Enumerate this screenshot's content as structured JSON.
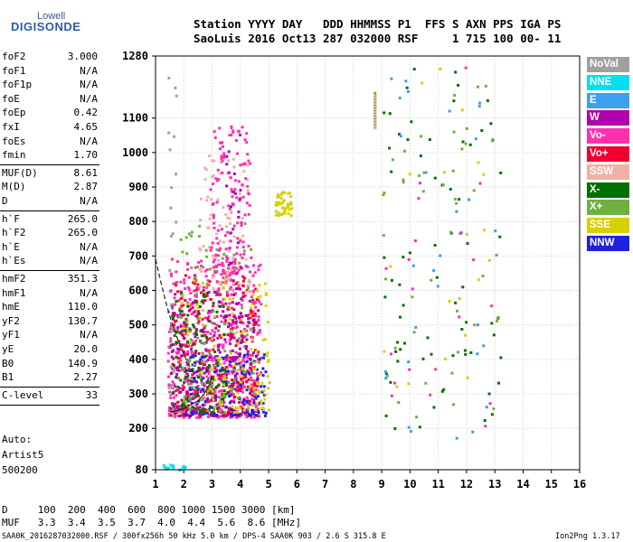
{
  "logo": {
    "top": "Lowell",
    "main": "DIGISONDE"
  },
  "header": {
    "line1": "Station YYYY DAY   DDD HHMMSS P1  FFS S AXN PPS IGA PS",
    "line2": "SaoLuis 2016 Oct13 287 032000 RSF     1 715 100 00- 11"
  },
  "params": [
    {
      "name": "foF2",
      "value": "3.000"
    },
    {
      "name": "foF1",
      "value": "N/A"
    },
    {
      "name": "foF1p",
      "value": "N/A"
    },
    {
      "name": "foE",
      "value": "N/A"
    },
    {
      "name": "foEp",
      "value": "0.42"
    },
    {
      "name": "fxI",
      "value": "4.65"
    },
    {
      "name": "foEs",
      "value": "N/A"
    },
    {
      "name": "fmin",
      "value": "1.70"
    },
    {
      "name": "MUF(D)",
      "value": "8.61"
    },
    {
      "name": "M(D)",
      "value": "2.87"
    },
    {
      "name": "D",
      "value": "N/A"
    },
    {
      "name": "h`F",
      "value": "265.0"
    },
    {
      "name": "h`F2",
      "value": "265.0"
    },
    {
      "name": "h`E",
      "value": "N/A"
    },
    {
      "name": "h`Es",
      "value": "N/A"
    },
    {
      "name": "hmF2",
      "value": "351.3"
    },
    {
      "name": "hmF1",
      "value": "N/A"
    },
    {
      "name": "hmE",
      "value": "110.0"
    },
    {
      "name": "yF2",
      "value": "130.7"
    },
    {
      "name": "yF1",
      "value": "N/A"
    },
    {
      "name": "yE",
      "value": "20.0"
    },
    {
      "name": "B0",
      "value": "140.9"
    },
    {
      "name": "B1",
      "value": "2.27"
    },
    {
      "name": "C-level",
      "value": "33"
    }
  ],
  "notes": {
    "auto": "Auto:",
    "artist": "Artist5",
    "version": "500200"
  },
  "legend": [
    {
      "label": "NoVal",
      "color": "#a0a0a0"
    },
    {
      "label": "NNE",
      "color": "#00e0f0"
    },
    {
      "label": "E",
      "color": "#3ca0f0"
    },
    {
      "label": "W",
      "color": "#b000b0"
    },
    {
      "label": "Vo-",
      "color": "#ff30b0"
    },
    {
      "label": "Vo+",
      "color": "#f00030"
    },
    {
      "label": "SSW",
      "color": "#f0b0a8"
    },
    {
      "label": "X-",
      "color": "#007000"
    },
    {
      "label": "X+",
      "color": "#70b040"
    },
    {
      "label": "SSE",
      "color": "#d8d000"
    },
    {
      "label": "NNW",
      "color": "#2020e0"
    }
  ],
  "footer": {
    "d_row": "D     100  200  400  600  800 1000 1500 3000 [km]",
    "muf_row": "MUF   3.3  3.4  3.5  3.7  4.0  4.4  5.6  8.6 [MHz]",
    "info": "SAA0K_2016287032000.RSF / 300fx256h 50 kHz 5.0 km / DPS-4 SAA0K 903 / 2.6 S 315.8 E",
    "version": "Ion2Png 1.3.17"
  },
  "chart_data": {
    "type": "scatter",
    "title": "",
    "xlabel": "",
    "ylabel": "",
    "xlim": [
      1,
      16
    ],
    "ylim": [
      80,
      1280
    ],
    "xticks": [
      1,
      2,
      3,
      4,
      5,
      6,
      7,
      8,
      9,
      10,
      11,
      12,
      13,
      14,
      15,
      16
    ],
    "yticks": [
      80,
      200,
      300,
      400,
      500,
      600,
      700,
      800,
      900,
      1000,
      1100,
      1280
    ],
    "grid": true,
    "legend_position": "right",
    "profile_curve": {
      "x": [
        1.5,
        1.8,
        2.0,
        2.2,
        2.5,
        2.7,
        2.9,
        3.0
      ],
      "y": [
        248,
        252,
        258,
        266,
        280,
        298,
        325,
        351
      ]
    },
    "trace_curve": {
      "x": [
        1.0,
        1.2,
        1.4,
        1.6,
        1.8,
        2.0,
        2.2,
        2.4
      ],
      "y": [
        690,
        620,
        555,
        500,
        455,
        415,
        380,
        355
      ]
    },
    "clusters": [
      {
        "code": "Vo-",
        "x": [
          1.4,
          4.7
        ],
        "y": [
          235,
          700
        ],
        "n": 550
      },
      {
        "code": "Vo+",
        "x": [
          1.5,
          4.6
        ],
        "y": [
          240,
          650
        ],
        "n": 280
      },
      {
        "code": "W",
        "x": [
          1.5,
          4.5
        ],
        "y": [
          240,
          600
        ],
        "n": 220
      },
      {
        "code": "NNW",
        "x": [
          2.0,
          4.9
        ],
        "y": [
          240,
          420
        ],
        "n": 140
      },
      {
        "code": "SSE",
        "x": [
          1.8,
          5.0
        ],
        "y": [
          250,
          640
        ],
        "n": 140
      },
      {
        "code": "SSW",
        "x": [
          2.5,
          4.3
        ],
        "y": [
          600,
          1000
        ],
        "n": 90
      },
      {
        "code": "X-",
        "x": [
          1.5,
          3.5
        ],
        "y": [
          250,
          600
        ],
        "n": 110
      },
      {
        "code": "X+",
        "x": [
          1.7,
          4.5
        ],
        "y": [
          250,
          800
        ],
        "n": 100
      },
      {
        "code": "Vo-",
        "x": [
          2.9,
          4.3
        ],
        "y": [
          650,
          1080
        ],
        "n": 130
      },
      {
        "code": "W",
        "x": [
          3.4,
          4.0
        ],
        "y": [
          400,
          1060
        ],
        "n": 50
      },
      {
        "code": "SSE",
        "x": [
          5.2,
          5.8
        ],
        "y": [
          820,
          890
        ],
        "n": 45
      },
      {
        "code": "NoVal",
        "x": [
          1.4,
          1.7
        ],
        "y": [
          240,
          1260
        ],
        "n": 30
      },
      {
        "code": "NNE",
        "x": [
          1.2,
          2.2
        ],
        "y": [
          82,
          100
        ],
        "n": 18
      },
      {
        "code": "X-",
        "x": [
          9.0,
          13.2
        ],
        "y": [
          200,
          1250
        ],
        "n": 70
      },
      {
        "code": "X+",
        "x": [
          9.0,
          13.2
        ],
        "y": [
          200,
          1250
        ],
        "n": 45
      },
      {
        "code": "E",
        "x": [
          9.0,
          13.0
        ],
        "y": [
          160,
          1250
        ],
        "n": 30
      },
      {
        "code": "Vo-",
        "x": [
          9.0,
          13.0
        ],
        "y": [
          160,
          1250
        ],
        "n": 20
      },
      {
        "code": "SSE",
        "x": [
          9.0,
          13.0
        ],
        "y": [
          200,
          1250
        ],
        "n": 20
      }
    ],
    "vertical_streak": {
      "code": "X+",
      "x": 8.75,
      "y": [
        1080,
        1180
      ]
    }
  }
}
